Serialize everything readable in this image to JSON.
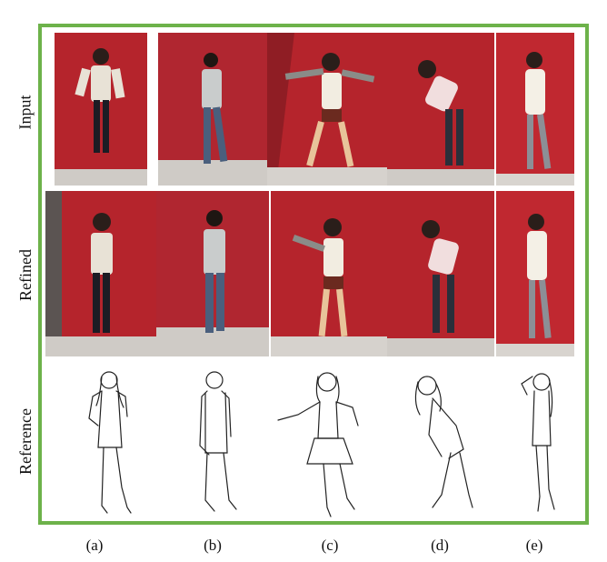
{
  "rows": [
    "Input",
    "Refined",
    "Reference"
  ],
  "columns": [
    "(a)",
    "(b)",
    "(c)",
    "(d)",
    "(e)"
  ],
  "colors": {
    "frame_border": "#6db24a",
    "wall_red": "#b5242c",
    "floor_gray": "#cfcbc6",
    "sketch_stroke": "#222222"
  }
}
